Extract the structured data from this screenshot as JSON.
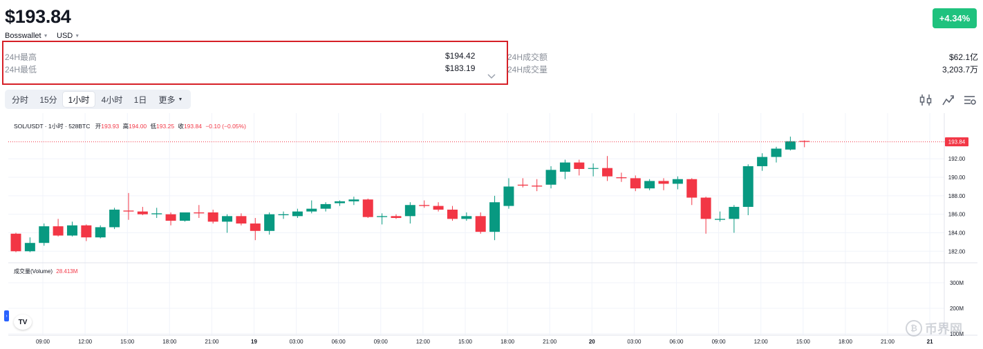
{
  "header": {
    "price": "$193.84",
    "exchange": "Bosswallet",
    "currency": "USD",
    "change": "+4.34%"
  },
  "stats": {
    "high_label": "24H最高",
    "high_value": "$194.42",
    "low_label": "24H最低",
    "low_value": "$183.19",
    "turnover_label": "24H成交额",
    "turnover_value": "$62.1亿",
    "volume_label": "24H成交量",
    "volume_value": "3,203.7万"
  },
  "tabs": [
    {
      "label": "分时"
    },
    {
      "label": "15分"
    },
    {
      "label": "1小时",
      "active": true
    },
    {
      "label": "4小时"
    },
    {
      "label": "1日"
    },
    {
      "label": "更多"
    }
  ],
  "toolbar_icons": [
    "indicator-icon",
    "chart-type-icon",
    "settings-icon"
  ],
  "chart_legend": {
    "symbol": "SOL/USDT · 1小时 · 528BTC",
    "open_label": "开",
    "open": "193.93",
    "high_label": "高",
    "high": "194.00",
    "low_label": "低",
    "low": "193.25",
    "close_label": "收",
    "close": "193.84",
    "change": "−0.10 (−0.05%)"
  },
  "volume_legend": {
    "label": "成交量(Volume)",
    "value": "28.413M"
  },
  "current_price_tag": "193.84",
  "watermark": "币界网",
  "colors": {
    "up": "#089981",
    "down": "#f23645",
    "badge": "#1fc27e",
    "highlight_box": "#d61f26"
  },
  "chart_data": {
    "type": "candlestick",
    "symbol": "SOL/USDT",
    "interval": "1小时",
    "ylim": [
      181.2,
      195.3
    ],
    "y_ticks": [
      182.0,
      184.0,
      186.0,
      188.0,
      190.0,
      192.0
    ],
    "volume_ticks": [
      "300M",
      "200M",
      "100M"
    ],
    "x_ticks": [
      "09:00",
      "12:00",
      "15:00",
      "18:00",
      "21:00",
      "19",
      "03:00",
      "06:00",
      "09:00",
      "12:00",
      "15:00",
      "18:00",
      "21:00",
      "20",
      "03:00",
      "06:00",
      "09:00",
      "12:00",
      "15:00",
      "18:00",
      "21:00",
      "21"
    ],
    "x_ticks_bold": [
      "19",
      "20",
      "21"
    ],
    "candles": [
      {
        "o": 183.9,
        "h": 184.0,
        "l": 181.9,
        "c": 182.0
      },
      {
        "o": 182.0,
        "h": 183.5,
        "l": 181.9,
        "c": 182.9
      },
      {
        "o": 182.9,
        "h": 185.0,
        "l": 182.6,
        "c": 184.7
      },
      {
        "o": 184.7,
        "h": 185.5,
        "l": 183.6,
        "c": 183.7
      },
      {
        "o": 183.7,
        "h": 185.2,
        "l": 183.6,
        "c": 184.8
      },
      {
        "o": 184.8,
        "h": 184.9,
        "l": 183.1,
        "c": 183.5
      },
      {
        "o": 183.5,
        "h": 184.8,
        "l": 183.4,
        "c": 184.6
      },
      {
        "o": 184.6,
        "h": 186.7,
        "l": 184.4,
        "c": 186.5
      },
      {
        "o": 186.4,
        "h": 188.3,
        "l": 185.4,
        "c": 186.3
      },
      {
        "o": 186.3,
        "h": 186.8,
        "l": 185.9,
        "c": 186.0
      },
      {
        "o": 186.0,
        "h": 186.7,
        "l": 185.6,
        "c": 186.1
      },
      {
        "o": 186.0,
        "h": 186.2,
        "l": 184.8,
        "c": 185.3
      },
      {
        "o": 185.3,
        "h": 186.2,
        "l": 185.2,
        "c": 186.2
      },
      {
        "o": 186.2,
        "h": 187.0,
        "l": 185.6,
        "c": 186.1
      },
      {
        "o": 186.2,
        "h": 186.5,
        "l": 185.0,
        "c": 185.2
      },
      {
        "o": 185.2,
        "h": 186.0,
        "l": 184.0,
        "c": 185.8
      },
      {
        "o": 185.8,
        "h": 186.1,
        "l": 184.8,
        "c": 185.0
      },
      {
        "o": 185.0,
        "h": 185.6,
        "l": 183.2,
        "c": 184.2
      },
      {
        "o": 184.2,
        "h": 186.2,
        "l": 183.8,
        "c": 186.0
      },
      {
        "o": 185.9,
        "h": 186.3,
        "l": 185.5,
        "c": 186.0
      },
      {
        "o": 185.8,
        "h": 186.6,
        "l": 185.6,
        "c": 186.3
      },
      {
        "o": 186.3,
        "h": 187.5,
        "l": 186.1,
        "c": 186.6
      },
      {
        "o": 186.6,
        "h": 187.3,
        "l": 186.3,
        "c": 187.1
      },
      {
        "o": 187.2,
        "h": 187.5,
        "l": 186.9,
        "c": 187.4
      },
      {
        "o": 187.4,
        "h": 187.9,
        "l": 187.0,
        "c": 187.6
      },
      {
        "o": 187.6,
        "h": 187.7,
        "l": 185.6,
        "c": 185.7
      },
      {
        "o": 185.7,
        "h": 186.1,
        "l": 184.9,
        "c": 185.8
      },
      {
        "o": 185.8,
        "h": 186.0,
        "l": 185.5,
        "c": 185.6
      },
      {
        "o": 185.8,
        "h": 187.3,
        "l": 185.0,
        "c": 187.0
      },
      {
        "o": 187.0,
        "h": 187.5,
        "l": 186.7,
        "c": 186.9
      },
      {
        "o": 186.9,
        "h": 187.3,
        "l": 186.3,
        "c": 186.5
      },
      {
        "o": 186.5,
        "h": 186.9,
        "l": 185.3,
        "c": 185.5
      },
      {
        "o": 185.5,
        "h": 186.2,
        "l": 185.3,
        "c": 185.8
      },
      {
        "o": 185.8,
        "h": 186.2,
        "l": 183.9,
        "c": 184.1
      },
      {
        "o": 184.1,
        "h": 188.0,
        "l": 183.2,
        "c": 187.3
      },
      {
        "o": 186.9,
        "h": 189.9,
        "l": 186.6,
        "c": 189.0
      },
      {
        "o": 189.2,
        "h": 189.9,
        "l": 188.9,
        "c": 189.1
      },
      {
        "o": 189.1,
        "h": 189.8,
        "l": 188.5,
        "c": 189.0
      },
      {
        "o": 189.2,
        "h": 191.2,
        "l": 188.8,
        "c": 190.8
      },
      {
        "o": 190.6,
        "h": 191.9,
        "l": 189.8,
        "c": 191.6
      },
      {
        "o": 191.6,
        "h": 191.9,
        "l": 190.2,
        "c": 190.9
      },
      {
        "o": 191.0,
        "h": 191.5,
        "l": 190.1,
        "c": 191.0
      },
      {
        "o": 191.0,
        "h": 192.3,
        "l": 189.6,
        "c": 190.1
      },
      {
        "o": 190.0,
        "h": 190.5,
        "l": 189.5,
        "c": 189.9
      },
      {
        "o": 189.9,
        "h": 190.2,
        "l": 188.5,
        "c": 188.8
      },
      {
        "o": 188.8,
        "h": 189.8,
        "l": 188.6,
        "c": 189.6
      },
      {
        "o": 189.6,
        "h": 189.9,
        "l": 188.6,
        "c": 189.3
      },
      {
        "o": 189.3,
        "h": 190.1,
        "l": 188.7,
        "c": 189.8
      },
      {
        "o": 189.8,
        "h": 189.9,
        "l": 187.0,
        "c": 187.8
      },
      {
        "o": 187.8,
        "h": 187.9,
        "l": 183.9,
        "c": 185.5
      },
      {
        "o": 185.4,
        "h": 186.3,
        "l": 185.2,
        "c": 185.5
      },
      {
        "o": 185.5,
        "h": 187.0,
        "l": 184.0,
        "c": 186.8
      },
      {
        "o": 186.8,
        "h": 191.4,
        "l": 185.9,
        "c": 191.2
      },
      {
        "o": 191.2,
        "h": 192.6,
        "l": 190.7,
        "c": 192.2
      },
      {
        "o": 192.2,
        "h": 193.3,
        "l": 191.6,
        "c": 193.1
      },
      {
        "o": 193.0,
        "h": 194.4,
        "l": 192.9,
        "c": 193.9
      },
      {
        "o": 193.93,
        "h": 194.0,
        "l": 193.25,
        "c": 193.84
      }
    ]
  }
}
